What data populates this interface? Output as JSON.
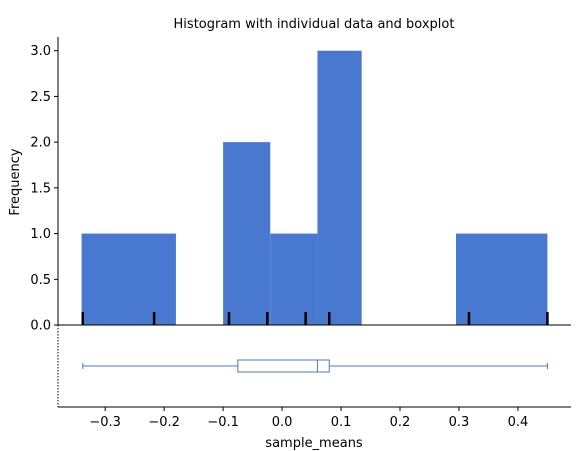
{
  "chart_data": {
    "type": "bar",
    "title": "Histogram with individual data and boxplot",
    "xlabel": "sample_means",
    "ylabel": "Frequency",
    "xlim": [
      -0.38,
      0.49
    ],
    "ylim": [
      0,
      3.15
    ],
    "xticks": [
      -0.3,
      -0.2,
      -0.1,
      0.0,
      0.1,
      0.2,
      0.3,
      0.4
    ],
    "xtick_labels": [
      "−0.3",
      "−0.2",
      "−0.1",
      "0.0",
      "0.1",
      "0.2",
      "0.3",
      "0.4"
    ],
    "yticks": [
      0.0,
      0.5,
      1.0,
      1.5,
      2.0,
      2.5,
      3.0
    ],
    "ytick_labels": [
      "0.0",
      "0.5",
      "1.0",
      "1.5",
      "2.0",
      "2.5",
      "3.0"
    ],
    "bins": [
      {
        "x0": -0.34,
        "x1": -0.18,
        "count": 1
      },
      {
        "x0": -0.1,
        "x1": -0.02,
        "count": 2
      },
      {
        "x0": -0.02,
        "x1": 0.06,
        "count": 1
      },
      {
        "x0": 0.06,
        "x1": 0.135,
        "count": 3
      },
      {
        "x0": 0.295,
        "x1": 0.45,
        "count": 1
      }
    ],
    "rug_points": [
      -0.338,
      -0.217,
      -0.09,
      -0.025,
      0.04,
      0.08,
      0.317,
      0.45
    ],
    "boxplot": {
      "whisker_low": -0.338,
      "q1": -0.075,
      "median": 0.06,
      "q3": 0.08,
      "whisker_high": 0.45
    },
    "bar_color": "#4878cf",
    "rug_color": "#000000",
    "box_color": "#4878cf",
    "grid": false
  }
}
